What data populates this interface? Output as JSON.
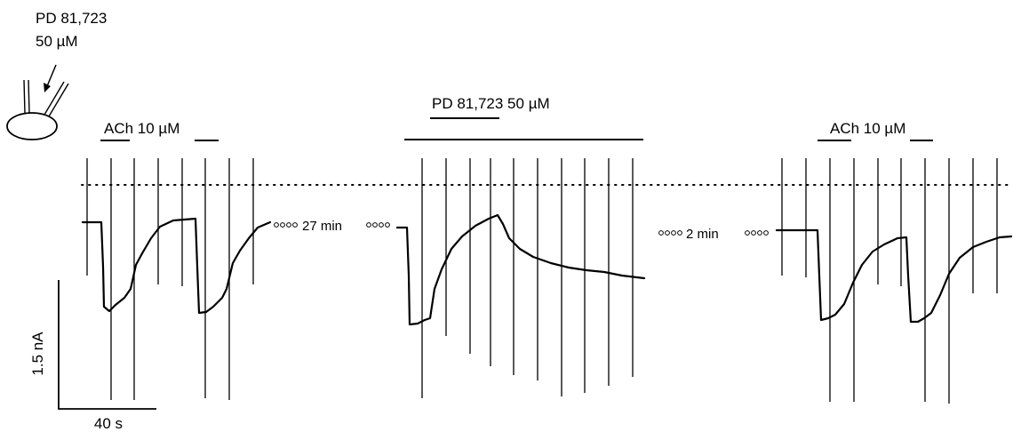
{
  "labels": {
    "pipette_drug": "PD 81,723",
    "pipette_conc": "50 µM",
    "ach_bar_left": "ACh 10 µM",
    "pd_bar_middle": "PD 81,723 50 µM",
    "ach_bar_right": "ACh 10 µM",
    "gap_1": "27 min",
    "gap_2": "2 min",
    "scale_y": "1.5 nA",
    "scale_x": "40 s"
  },
  "colors": {
    "ink": "#000000",
    "background": "#ffffff"
  },
  "icons": [
    "cell-pipette-icon"
  ]
}
